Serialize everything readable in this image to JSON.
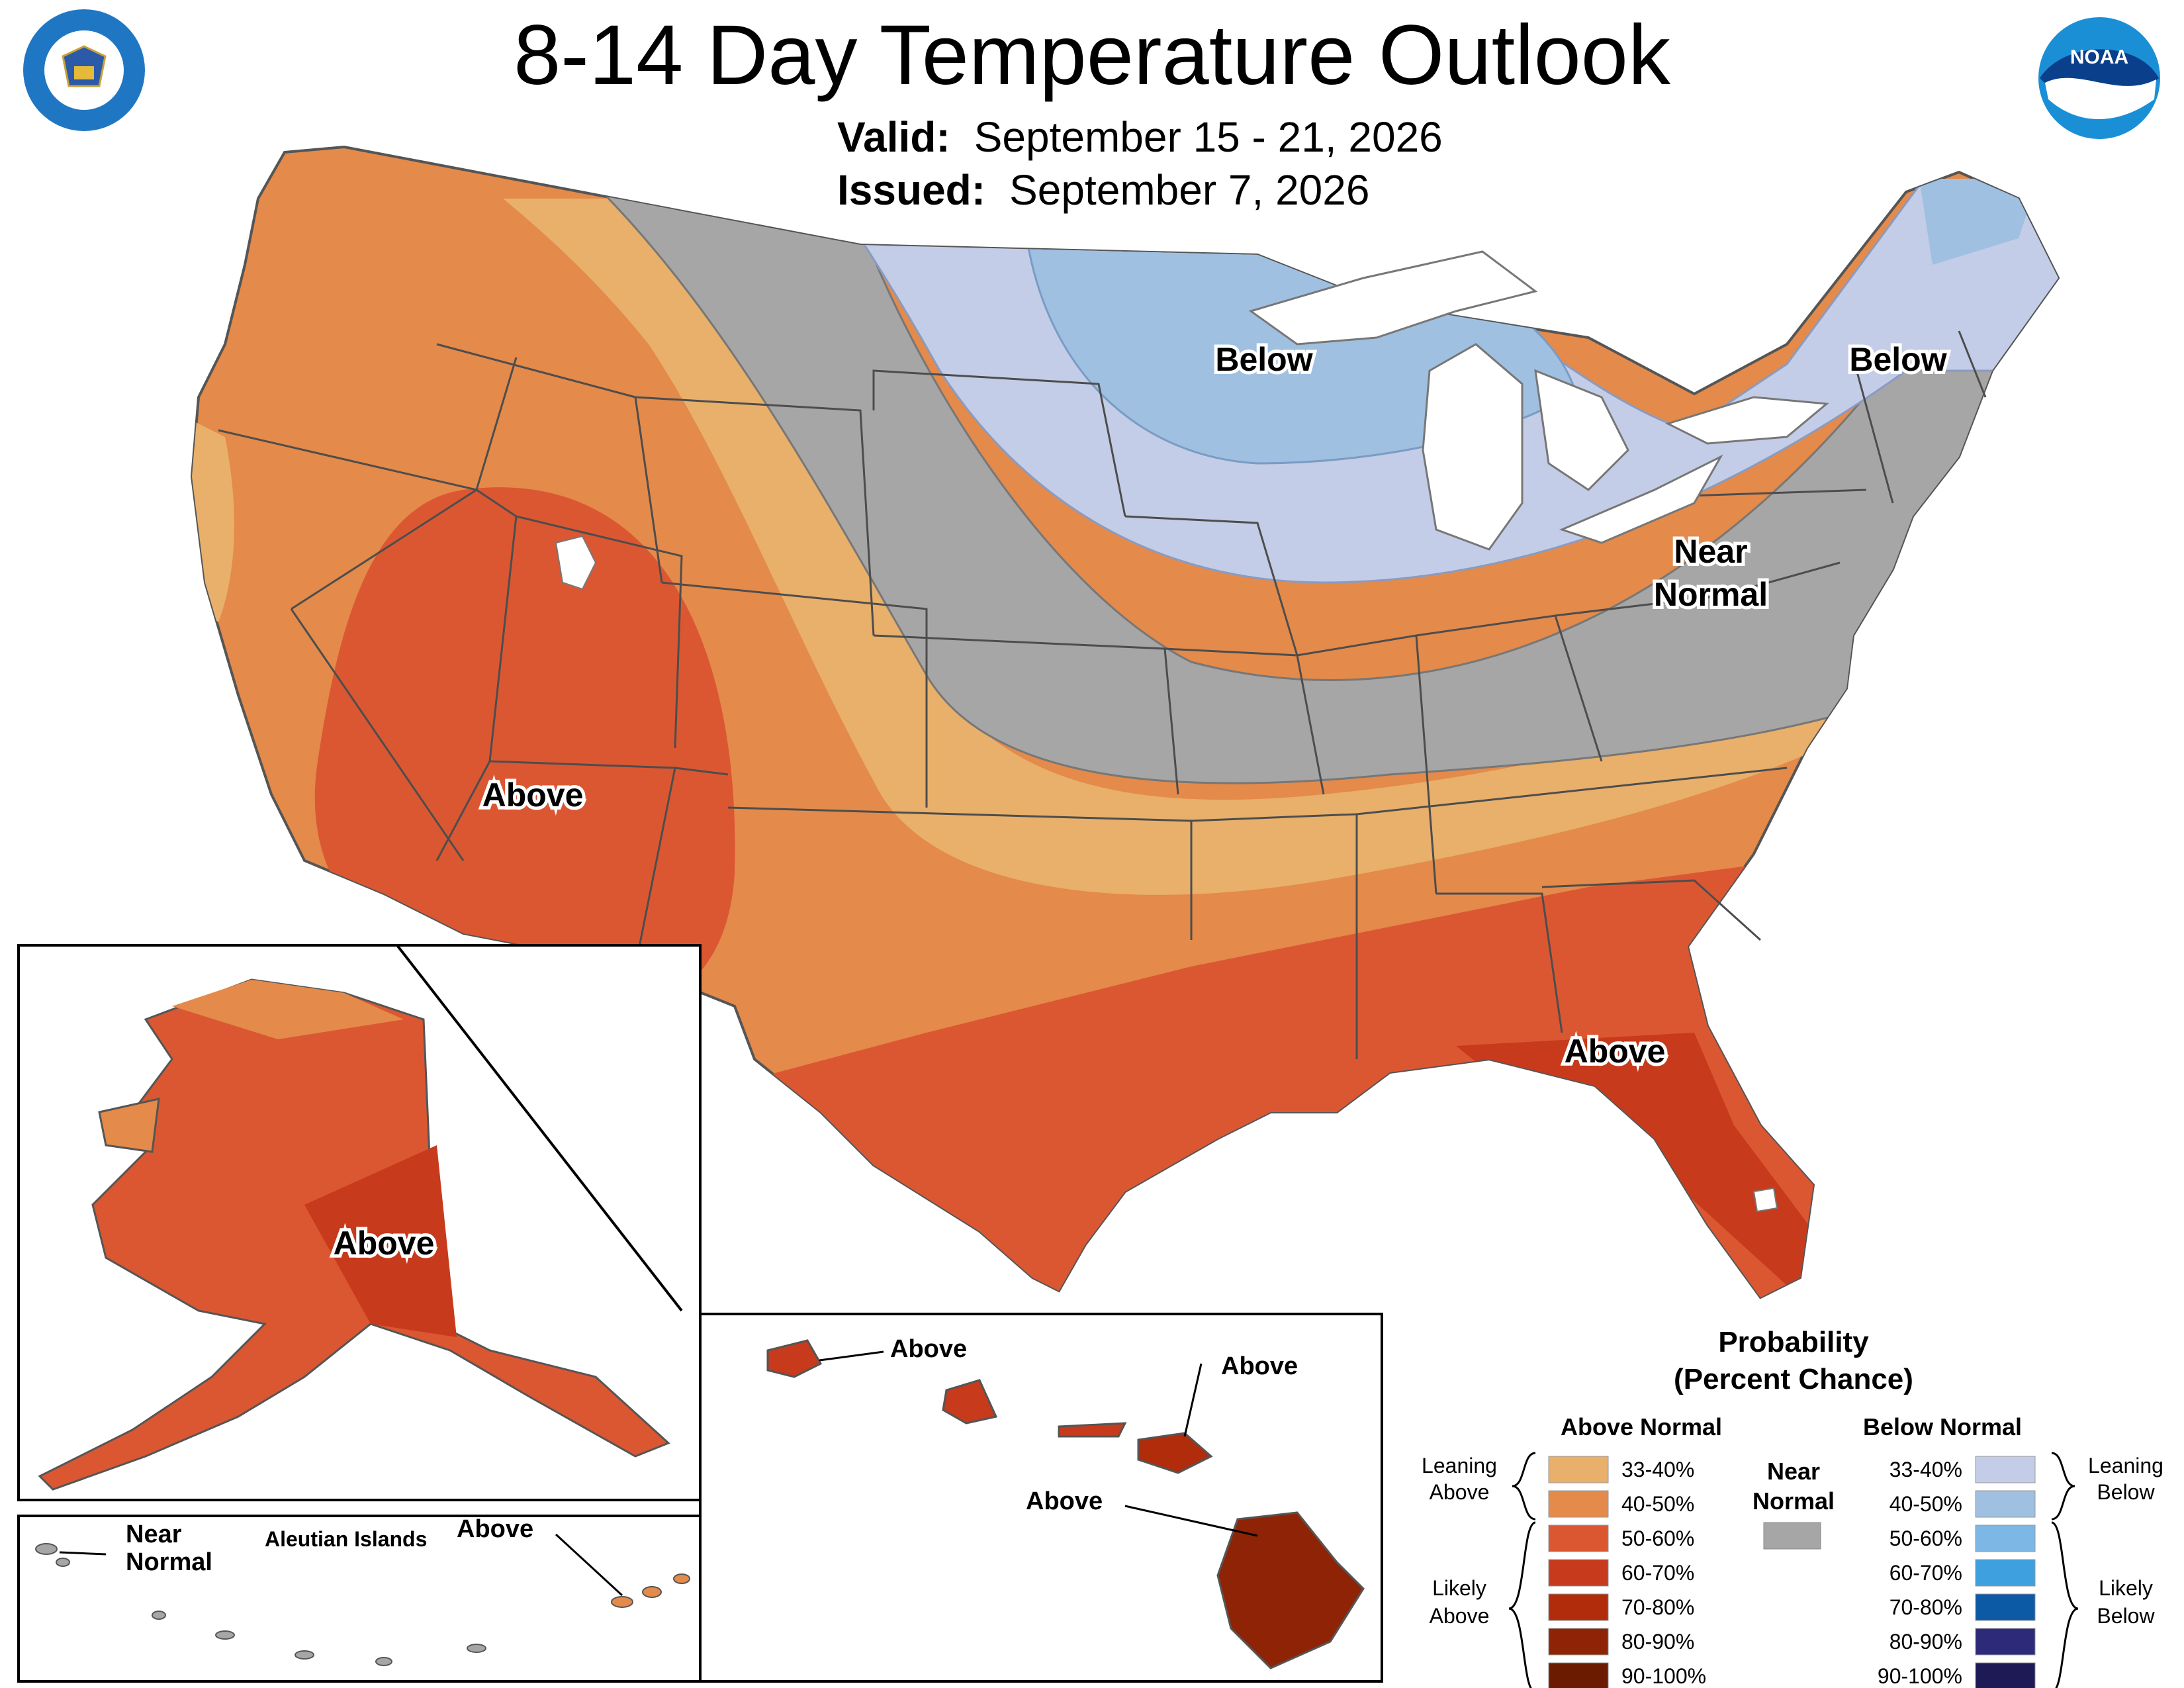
{
  "header": {
    "title": "8-14 Day Temperature Outlook",
    "valid_label": "Valid:",
    "valid_value": "September 15 - 21, 2026",
    "issued_label": "Issued:",
    "issued_value": "September 7, 2026"
  },
  "logos": {
    "left": {
      "icon": "department-of-commerce-seal-icon",
      "text": "DEPARTMENT OF COMMERCE · UNITED STATES OF AMERICA"
    },
    "right": {
      "icon": "noaa-logo-icon",
      "text": "NOAA"
    }
  },
  "conus_labels": {
    "below_midwest": "Below",
    "below_northeast": "Below",
    "near_normal_l1": "Near",
    "near_normal_l2": "Normal",
    "above_southwest": "Above",
    "above_southeast": "Above"
  },
  "alaska": {
    "label_above": "Above",
    "aleutian_title": "Aleutian Islands",
    "aleutian_near_l1": "Near",
    "aleutian_near_l2": "Normal",
    "aleutian_above": "Above"
  },
  "hawaii": {
    "labels": [
      "Above",
      "Above",
      "Above"
    ]
  },
  "legend": {
    "title_l1": "Probability",
    "title_l2": "(Percent Chance)",
    "above_heading": "Above Normal",
    "below_heading": "Below Normal",
    "near_heading_l1": "Near",
    "near_heading_l2": "Normal",
    "leaning_above_l1": "Leaning",
    "leaning_above_l2": "Above",
    "likely_above_l1": "Likely",
    "likely_above_l2": "Above",
    "leaning_below_l1": "Leaning",
    "leaning_below_l2": "Below",
    "likely_below_l1": "Likely",
    "likely_below_l2": "Below",
    "near_color": "#a6a6a6",
    "above": [
      {
        "range": "33-40%",
        "color": "#e8b06a"
      },
      {
        "range": "40-50%",
        "color": "#e48a4a"
      },
      {
        "range": "50-60%",
        "color": "#db5732"
      },
      {
        "range": "60-70%",
        "color": "#c73a1c"
      },
      {
        "range": "70-80%",
        "color": "#b02c0a"
      },
      {
        "range": "80-90%",
        "color": "#8e2405"
      },
      {
        "range": "90-100%",
        "color": "#6b1c00"
      }
    ],
    "below": [
      {
        "range": "33-40%",
        "color": "#c3cde7"
      },
      {
        "range": "40-50%",
        "color": "#9fc0e0"
      },
      {
        "range": "50-60%",
        "color": "#7db7e6"
      },
      {
        "range": "60-70%",
        "color": "#3fa0e0"
      },
      {
        "range": "70-80%",
        "color": "#0c5aa6"
      },
      {
        "range": "80-90%",
        "color": "#2e2a7a"
      },
      {
        "range": "90-100%",
        "color": "#1e1a55"
      }
    ]
  }
}
